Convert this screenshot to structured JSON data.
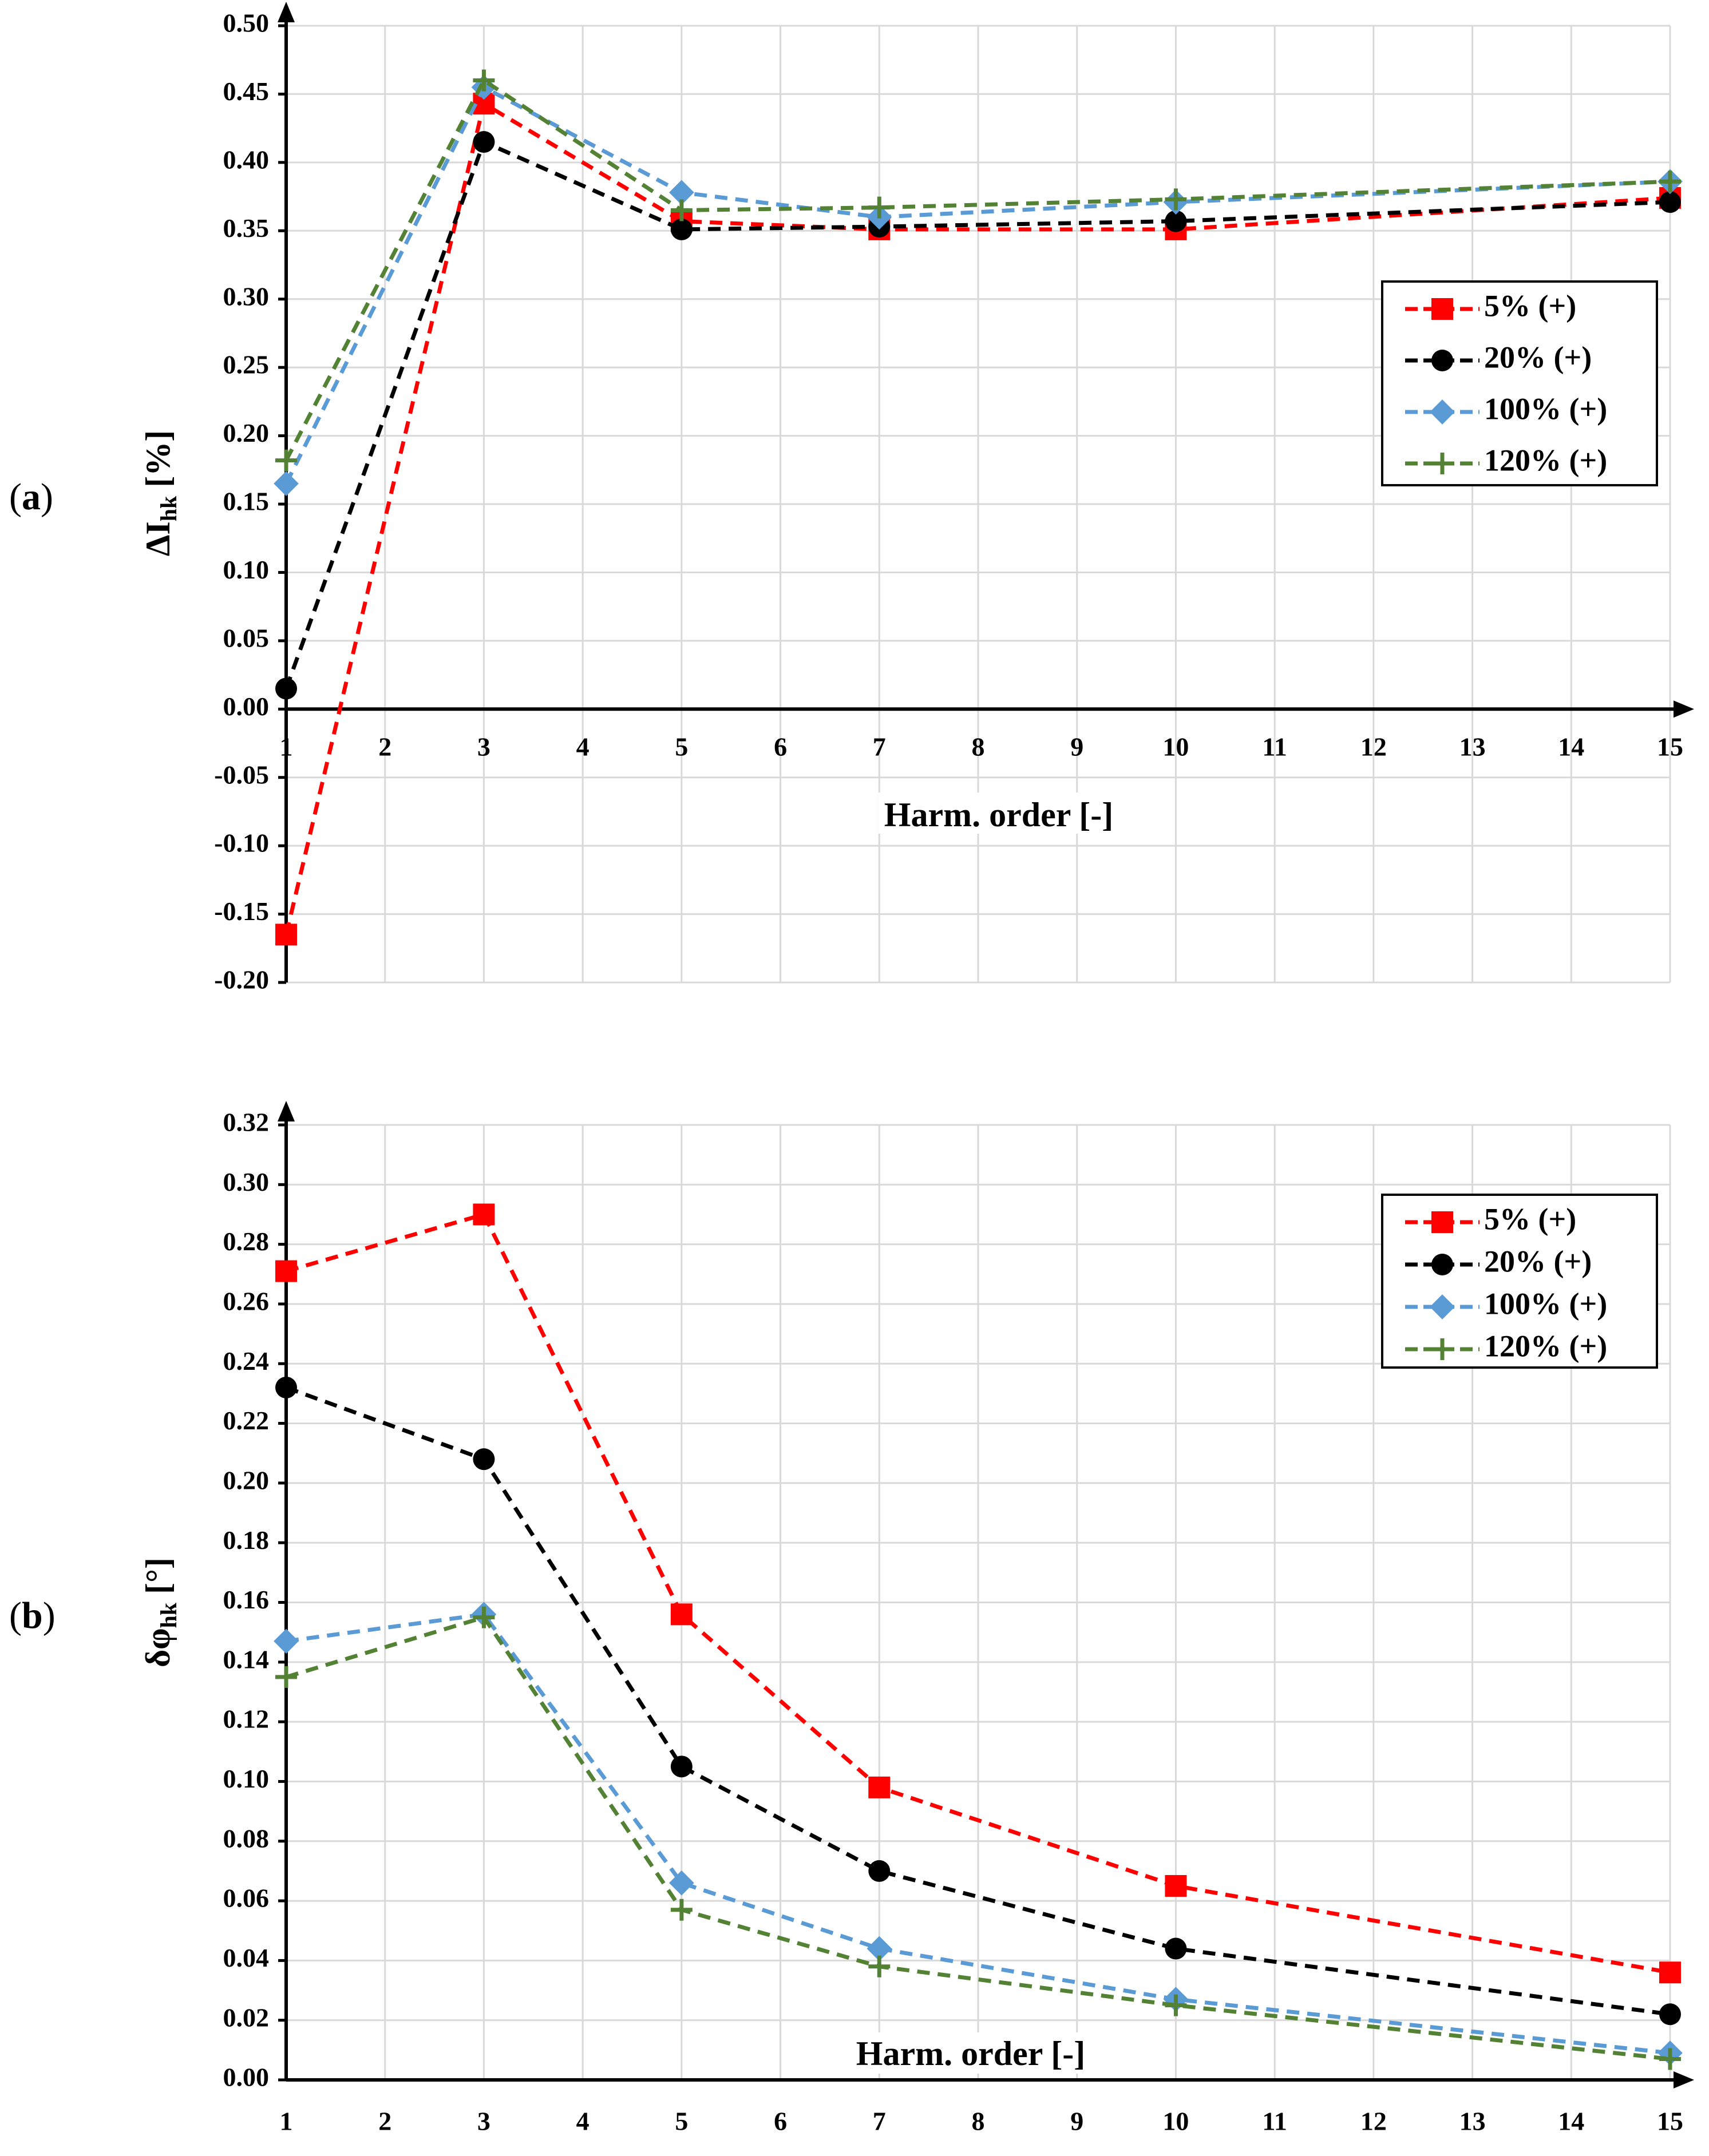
{
  "panels": [
    {
      "label": "a",
      "label_open": "(",
      "label_close": ")",
      "ylabel_main": "ΔI",
      "ylabel_sub": "hk",
      "ylabel_unit": " [%]",
      "xlabel": "Harm. order [-]"
    },
    {
      "label": "b",
      "label_open": "(",
      "label_close": ")",
      "ylabel_main": "δφ",
      "ylabel_sub": "hk",
      "ylabel_unit": " [°]",
      "xlabel": "Harm. order [-]"
    }
  ],
  "chart_data": [
    {
      "type": "line",
      "title": "",
      "xlabel": "Harm. order [-]",
      "ylabel": "ΔIhk [%]",
      "xlim": [
        1,
        15
      ],
      "ylim": [
        -0.2,
        0.5
      ],
      "x_ticks": [
        1,
        2,
        3,
        4,
        5,
        6,
        7,
        8,
        9,
        10,
        11,
        12,
        13,
        14,
        15
      ],
      "y_ticks": [
        -0.2,
        -0.15,
        -0.1,
        -0.05,
        0.0,
        0.05,
        0.1,
        0.15,
        0.2,
        0.25,
        0.3,
        0.35,
        0.4,
        0.45,
        0.5
      ],
      "y_tick_labels": [
        "-0.20",
        "-0.15",
        "-0.10",
        "-0.05",
        "0.00",
        "0.05",
        "0.10",
        "0.15",
        "0.20",
        "0.25",
        "0.30",
        "0.35",
        "0.40",
        "0.45",
        "0.50"
      ],
      "x": [
        1,
        3,
        5,
        7,
        10,
        15
      ],
      "grid": true,
      "legend_position": "right-middle",
      "series": [
        {
          "name": "5% (+)",
          "color": "#ff0000",
          "marker": "square",
          "values": [
            -0.165,
            0.443,
            0.357,
            0.351,
            0.351,
            0.374
          ]
        },
        {
          "name": "20% (+)",
          "color": "#000000",
          "marker": "circle",
          "values": [
            0.015,
            0.415,
            0.351,
            0.353,
            0.357,
            0.371
          ]
        },
        {
          "name": "100% (+)",
          "color": "#5b9bd5",
          "marker": "diamond",
          "values": [
            0.165,
            0.455,
            0.378,
            0.36,
            0.371,
            0.386
          ]
        },
        {
          "name": "120% (+)",
          "color": "#548235",
          "marker": "plus",
          "values": [
            0.182,
            0.46,
            0.365,
            0.367,
            0.373,
            0.386
          ]
        }
      ]
    },
    {
      "type": "line",
      "title": "",
      "xlabel": "Harm. order [-]",
      "ylabel": "δφhk [°]",
      "xlim": [
        1,
        15
      ],
      "ylim": [
        0.0,
        0.32
      ],
      "x_ticks": [
        1,
        2,
        3,
        4,
        5,
        6,
        7,
        8,
        9,
        10,
        11,
        12,
        13,
        14,
        15
      ],
      "y_ticks": [
        0,
        0.02,
        0.04,
        0.06,
        0.08,
        0.1,
        0.12,
        0.14,
        0.16,
        0.18,
        0.2,
        0.22,
        0.24,
        0.26,
        0.28,
        0.3,
        0.32
      ],
      "y_tick_labels": [
        "0.00",
        "0.02",
        "0.04",
        "0.06",
        "0.08",
        "0.10",
        "0.12",
        "0.14",
        "0.16",
        "0.18",
        "0.20",
        "0.22",
        "0.24",
        "0.26",
        "0.28",
        "0.30",
        "0.32"
      ],
      "x": [
        1,
        3,
        5,
        7,
        10,
        15
      ],
      "grid": true,
      "legend_position": "top-right",
      "series": [
        {
          "name": "5% (+)",
          "color": "#ff0000",
          "marker": "square",
          "values": [
            0.271,
            0.29,
            0.156,
            0.098,
            0.065,
            0.036
          ]
        },
        {
          "name": "20% (+)",
          "color": "#000000",
          "marker": "circle",
          "values": [
            0.232,
            0.208,
            0.105,
            0.07,
            0.044,
            0.022
          ]
        },
        {
          "name": "100% (+)",
          "color": "#5b9bd5",
          "marker": "diamond",
          "values": [
            0.147,
            0.156,
            0.066,
            0.044,
            0.027,
            0.009
          ]
        },
        {
          "name": "120% (+)",
          "color": "#548235",
          "marker": "plus",
          "values": [
            0.135,
            0.155,
            0.057,
            0.038,
            0.025,
            0.007
          ]
        }
      ]
    }
  ]
}
